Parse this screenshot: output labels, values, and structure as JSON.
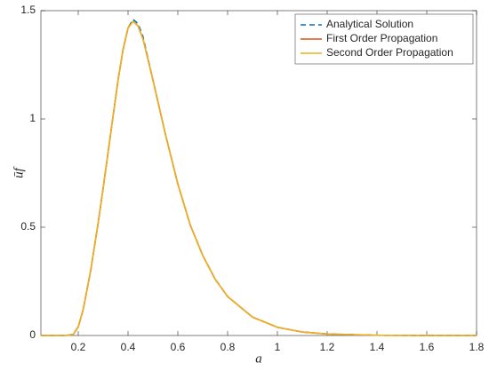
{
  "chart_data": {
    "type": "line",
    "xlabel": "a",
    "ylabel": "ūf",
    "x": [
      0.05,
      0.1,
      0.15,
      0.18,
      0.2,
      0.22,
      0.25,
      0.28,
      0.3,
      0.33,
      0.36,
      0.38,
      0.4,
      0.42,
      0.44,
      0.46,
      0.5,
      0.55,
      0.6,
      0.65,
      0.7,
      0.75,
      0.8,
      0.9,
      1.0,
      1.1,
      1.2,
      1.4,
      1.6,
      1.8
    ],
    "series": [
      {
        "name": "Analytical Solution",
        "color": "#0072bd",
        "line_style": "dashed",
        "values": [
          0,
          0,
          0,
          0.005,
          0.04,
          0.12,
          0.3,
          0.52,
          0.68,
          0.93,
          1.18,
          1.32,
          1.42,
          1.46,
          1.44,
          1.38,
          1.18,
          0.93,
          0.7,
          0.51,
          0.37,
          0.26,
          0.18,
          0.085,
          0.038,
          0.016,
          0.007,
          0.001,
          0,
          0
        ]
      },
      {
        "name": "First Order Propagation",
        "color": "#d95319",
        "line_style": "solid",
        "values": [
          0,
          0,
          0,
          0.005,
          0.04,
          0.12,
          0.3,
          0.52,
          0.68,
          0.93,
          1.18,
          1.32,
          1.42,
          1.45,
          1.43,
          1.37,
          1.18,
          0.93,
          0.7,
          0.51,
          0.37,
          0.26,
          0.18,
          0.085,
          0.038,
          0.016,
          0.007,
          0.001,
          0,
          0
        ]
      },
      {
        "name": "Second Order Propagation",
        "color": "#edb120",
        "line_style": "solid",
        "values": [
          0,
          0,
          0,
          0.005,
          0.04,
          0.12,
          0.3,
          0.52,
          0.68,
          0.93,
          1.18,
          1.32,
          1.42,
          1.45,
          1.43,
          1.37,
          1.18,
          0.93,
          0.7,
          0.51,
          0.37,
          0.26,
          0.18,
          0.085,
          0.038,
          0.016,
          0.007,
          0.001,
          0,
          0
        ]
      }
    ],
    "xlim": [
      0.05,
      1.8
    ],
    "xticks": [
      0.2,
      0.4,
      0.6,
      0.8,
      1,
      1.2,
      1.4,
      1.6,
      1.8
    ],
    "ylim": [
      0,
      1.5
    ],
    "yticks": [
      0,
      0.5,
      1,
      1.5
    ],
    "grid": false,
    "legend": "top-right"
  }
}
